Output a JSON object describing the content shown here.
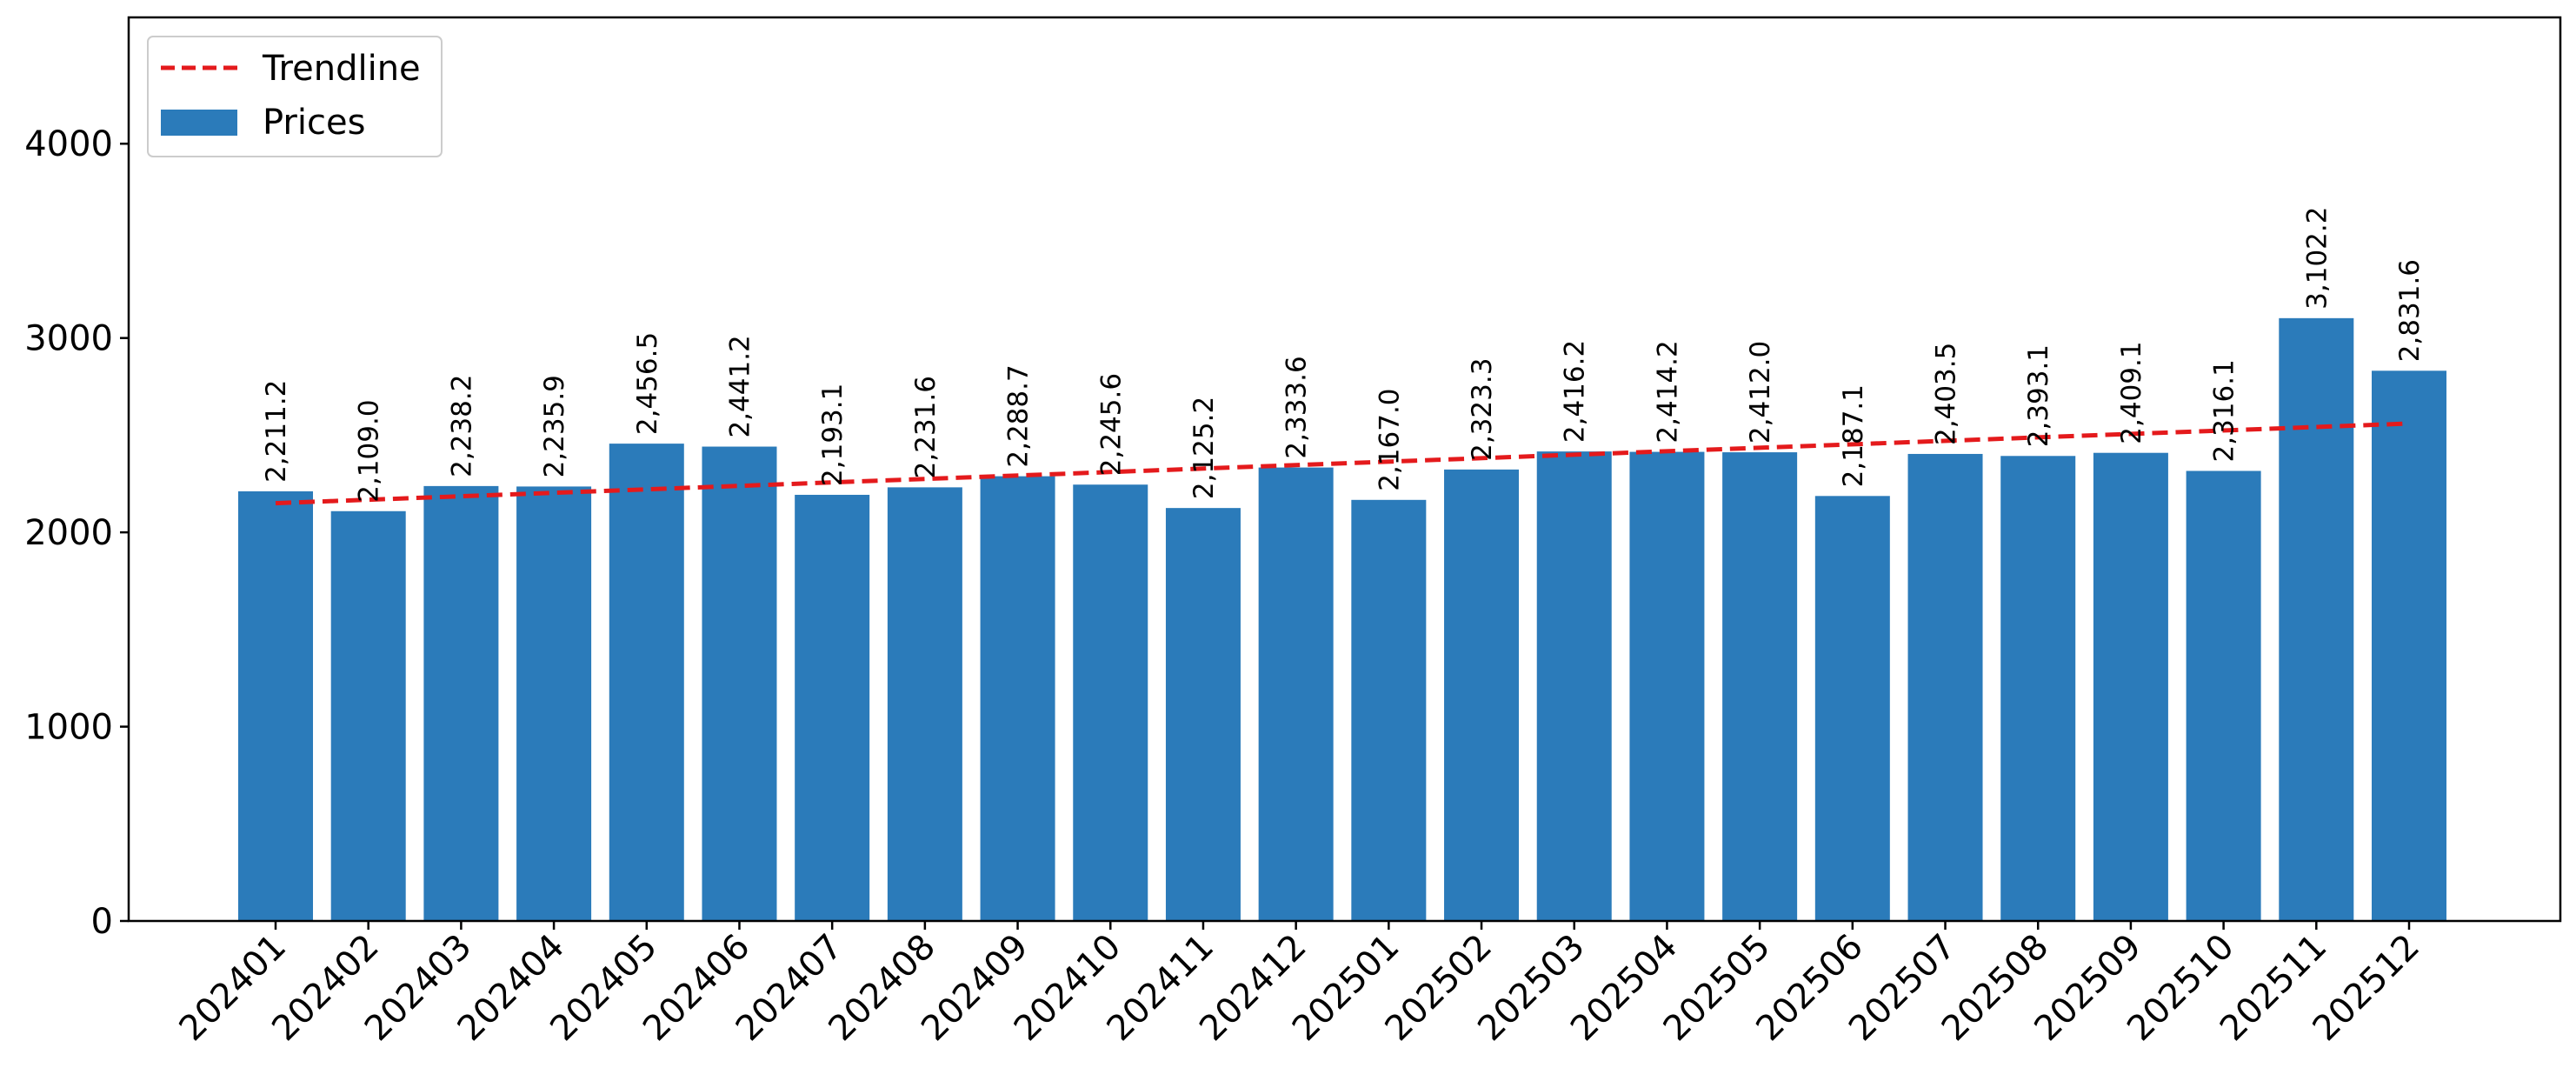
{
  "chart_data": {
    "type": "bar",
    "title": "",
    "xlabel": "",
    "ylabel": "",
    "categories": [
      "202401",
      "202402",
      "202403",
      "202404",
      "202405",
      "202406",
      "202407",
      "202408",
      "202409",
      "202410",
      "202411",
      "202412",
      "202501",
      "202502",
      "202503",
      "202504",
      "202505",
      "202506",
      "202507",
      "202508",
      "202509",
      "202510",
      "202511",
      "202512"
    ],
    "series": [
      {
        "name": "Prices",
        "values": [
          2211.2,
          2109.0,
          2238.2,
          2235.9,
          2456.5,
          2441.2,
          2193.1,
          2231.6,
          2288.7,
          2245.6,
          2125.2,
          2333.6,
          2167.0,
          2323.3,
          2416.2,
          2414.2,
          2412.0,
          2187.1,
          2403.5,
          2393.1,
          2409.1,
          2316.1,
          3102.2,
          2831.6
        ],
        "data_labels": [
          "2,211.2",
          "2,109.0",
          "2,238.2",
          "2,235.9",
          "2,456.5",
          "2,441.2",
          "2,193.1",
          "2,231.6",
          "2,288.7",
          "2,245.6",
          "2,125.2",
          "2,333.6",
          "2,167.0",
          "2,323.3",
          "2,416.2",
          "2,414.2",
          "2,412.0",
          "2,187.1",
          "2,403.5",
          "2,393.1",
          "2,409.1",
          "2,316.1",
          "3,102.2",
          "2,831.6"
        ],
        "color": "#2b7bba"
      }
    ],
    "trendline": {
      "name": "Trendline",
      "start": 2150,
      "end": 2560,
      "color": "#e41a1c",
      "style": "dashed"
    },
    "ylim": [
      0,
      4650
    ],
    "yticks": [
      0,
      1000,
      2000,
      3000,
      4000
    ],
    "grid": false,
    "legend": {
      "position": "top-left",
      "entries": [
        "Trendline",
        "Prices"
      ]
    }
  }
}
